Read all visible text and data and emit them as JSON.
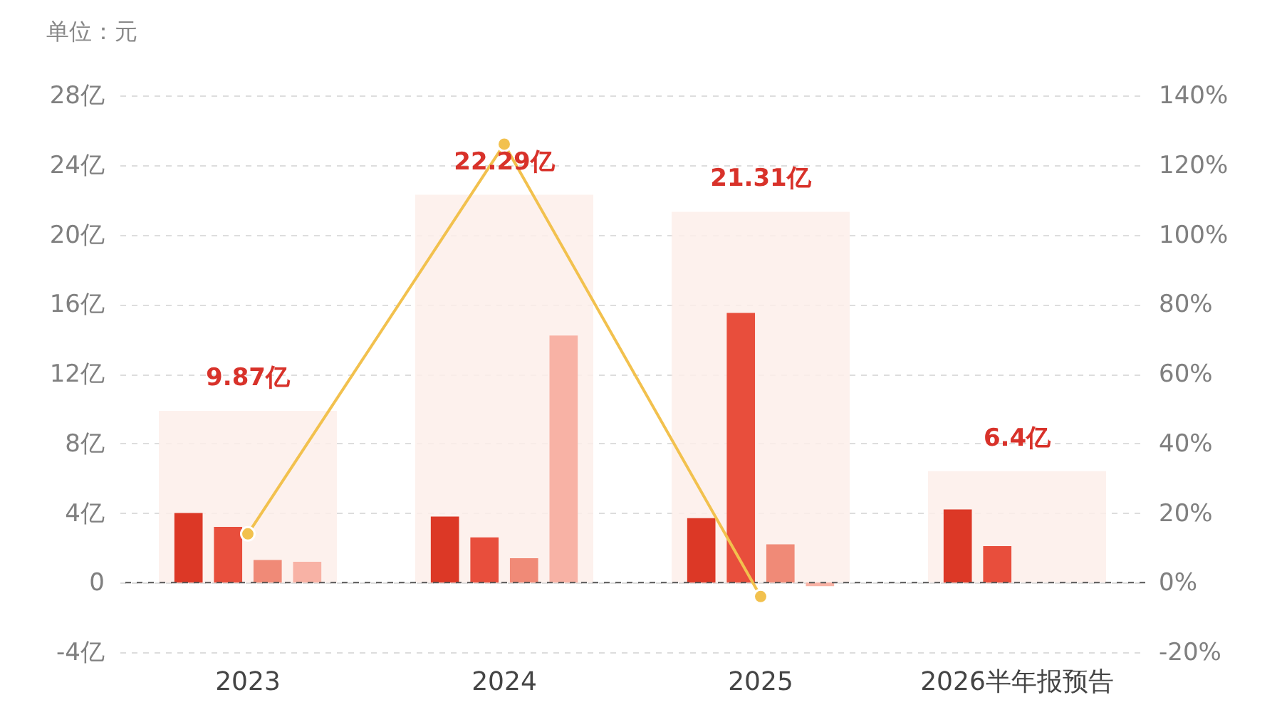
{
  "chart_data": {
    "type": "bar",
    "ylabel": "单位：元",
    "categories": [
      "2023",
      "2024",
      "2025",
      "2026半年报预告"
    ],
    "series": [
      {
        "color": "#fdeeea",
        "values": [
          9.87,
          22.29,
          21.31,
          6.4
        ],
        "value_labels": [
          "9.87亿",
          "22.29亿",
          "21.31亿",
          "6.4亿"
        ]
      },
      {
        "color": "#dc3826",
        "values": [
          4.0,
          3.8,
          3.7,
          4.2
        ]
      },
      {
        "color": "#e84e3c",
        "values": [
          3.2,
          2.6,
          15.5,
          2.1
        ]
      },
      {
        "color": "#f08a77",
        "values": [
          1.3,
          1.4,
          2.2,
          null
        ]
      },
      {
        "color": "#f8b2a5",
        "values": [
          1.2,
          14.2,
          -0.2,
          null
        ]
      },
      {
        "type": "line",
        "axis": "y2",
        "color": "#f2c14e",
        "values": [
          14,
          126,
          -4,
          null
        ]
      }
    ],
    "ylim": [
      -4,
      28
    ],
    "yticks": [
      {
        "value": -4,
        "label": "-4亿"
      },
      0,
      {
        "value": 4,
        "label": "4亿"
      },
      {
        "value": 8,
        "label": "8亿"
      },
      {
        "value": 12,
        "label": "12亿"
      },
      {
        "value": 16,
        "label": "16亿"
      },
      {
        "value": 20,
        "label": "20亿"
      },
      {
        "value": 24,
        "label": "24亿"
      },
      {
        "value": 28,
        "label": "28亿"
      }
    ],
    "y2lim": [
      -20,
      140
    ],
    "y2ticks": [
      {
        "value": -20,
        "label": "-20%"
      },
      {
        "value": 0,
        "label": "0%"
      },
      {
        "value": 20,
        "label": "20%"
      },
      {
        "value": 40,
        "label": "40%"
      },
      {
        "value": 60,
        "label": "60%"
      },
      {
        "value": 80,
        "label": "80%"
      },
      {
        "value": 100,
        "label": "100%"
      },
      {
        "value": 120,
        "label": "120%"
      },
      {
        "value": 140,
        "label": "140%"
      }
    ],
    "grid": "y",
    "marker": "circle",
    "line_style": "solid",
    "ref_lines": [
      {
        "axis": "y",
        "value": 0,
        "color": "#555555",
        "line_style": "dashed"
      }
    ]
  }
}
